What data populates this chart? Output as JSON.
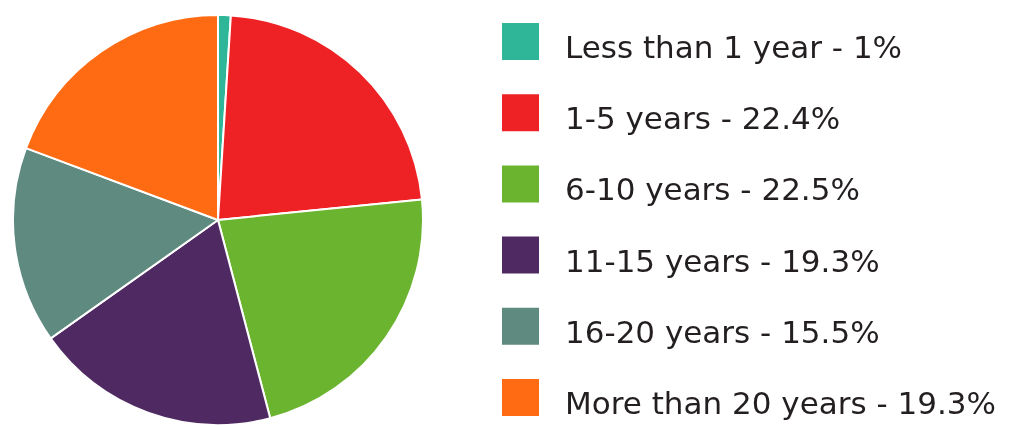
{
  "chart_data": {
    "type": "pie",
    "categories": [
      "Less than 1 year - 1%",
      "1-5 years - 22.4%",
      "6-10 years - 22.5%",
      "11-15 years - 19.3%",
      "16-20 years - 15.5%",
      "More than 20 years - 19.3%"
    ],
    "values": [
      1,
      22.4,
      22.5,
      19.3,
      15.5,
      19.3
    ],
    "colors": [
      "#2fb597",
      "#ee2224",
      "#6ab42f",
      "#4f2a62",
      "#5e8a80",
      "#ff6b12"
    ],
    "legend": "right"
  }
}
